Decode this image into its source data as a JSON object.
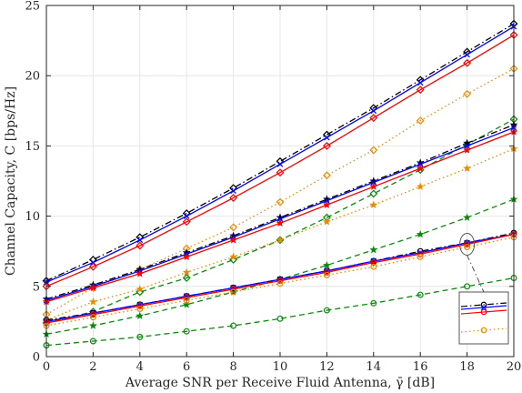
{
  "chart_data": {
    "type": "line",
    "xlabel": "Average SNR per Receive Fluid Antenna, γ̄ [dB]",
    "ylabel": "Channel Capacity, C [bps/Hz]",
    "xlim": [
      0,
      20
    ],
    "ylim": [
      0,
      25
    ],
    "xticks": [
      0,
      2,
      4,
      6,
      8,
      10,
      12,
      14,
      16,
      18,
      20
    ],
    "yticks": [
      0,
      5,
      10,
      15,
      20,
      25
    ],
    "grid": true,
    "x": [
      0,
      2,
      4,
      6,
      8,
      10,
      12,
      14,
      16,
      18,
      20
    ],
    "series": [
      {
        "group": 1,
        "color": "#000000",
        "dash": "dashdot",
        "marker": "diamond",
        "values": [
          5.4,
          6.9,
          8.5,
          10.2,
          12.0,
          13.9,
          15.8,
          17.7,
          19.7,
          21.7,
          23.7
        ]
      },
      {
        "group": 1,
        "color": "#0000ff",
        "dash": "solid",
        "marker": "x",
        "values": [
          5.3,
          6.7,
          8.3,
          10.0,
          11.8,
          13.7,
          15.6,
          17.5,
          19.5,
          21.5,
          23.5
        ]
      },
      {
        "group": 1,
        "color": "#ff0000",
        "dash": "solid",
        "marker": "diamond",
        "values": [
          5.0,
          6.4,
          7.9,
          9.6,
          11.3,
          13.1,
          15.0,
          17.0,
          19.0,
          20.9,
          22.9
        ]
      },
      {
        "group": 1,
        "color": "#e88a00",
        "dash": "dotted",
        "marker": "diamond",
        "values": [
          3.0,
          4.9,
          6.2,
          7.7,
          9.2,
          11.0,
          12.9,
          14.7,
          16.8,
          18.7,
          20.5
        ]
      },
      {
        "group": 1,
        "color": "#0a8a0a",
        "dash": "dashed",
        "marker": "diamond",
        "values": [
          2.4,
          3.2,
          4.6,
          5.6,
          6.9,
          8.3,
          9.9,
          11.6,
          13.3,
          15.1,
          16.9
        ]
      },
      {
        "group": 2,
        "color": "#000000",
        "dash": "dashdot",
        "marker": "star",
        "values": [
          4.1,
          5.1,
          6.2,
          7.4,
          8.6,
          9.9,
          11.2,
          12.5,
          13.8,
          15.2,
          16.5
        ]
      },
      {
        "group": 2,
        "color": "#0000ff",
        "dash": "solid",
        "marker": "x",
        "values": [
          4.0,
          5.0,
          6.1,
          7.3,
          8.5,
          9.8,
          11.1,
          12.4,
          13.7,
          15.0,
          16.3
        ]
      },
      {
        "group": 2,
        "color": "#ff0000",
        "dash": "solid",
        "marker": "star",
        "values": [
          3.9,
          4.9,
          5.9,
          7.1,
          8.3,
          9.5,
          10.8,
          12.1,
          13.4,
          14.7,
          16.0
        ]
      },
      {
        "group": 2,
        "color": "#e88a00",
        "dash": "dotted",
        "marker": "star",
        "values": [
          2.6,
          3.9,
          4.8,
          6.0,
          7.1,
          8.3,
          9.6,
          10.8,
          12.1,
          13.4,
          14.8
        ]
      },
      {
        "group": 2,
        "color": "#0a8a0a",
        "dash": "dashed",
        "marker": "star",
        "values": [
          1.6,
          2.2,
          2.9,
          3.7,
          4.6,
          5.5,
          6.5,
          7.6,
          8.7,
          9.9,
          11.2
        ]
      },
      {
        "group": 3,
        "color": "#000000",
        "dash": "dashdot",
        "marker": "circle",
        "values": [
          2.6,
          3.1,
          3.7,
          4.3,
          4.9,
          5.5,
          6.1,
          6.8,
          7.5,
          8.1,
          8.8
        ]
      },
      {
        "group": 3,
        "color": "#0000ff",
        "dash": "solid",
        "marker": "x",
        "values": [
          2.5,
          3.1,
          3.7,
          4.3,
          4.9,
          5.5,
          6.1,
          6.8,
          7.4,
          8.1,
          8.7
        ]
      },
      {
        "group": 3,
        "color": "#ff0000",
        "dash": "solid",
        "marker": "circle",
        "values": [
          2.4,
          3.0,
          3.6,
          4.2,
          4.8,
          5.4,
          6.0,
          6.7,
          7.3,
          8.0,
          8.7
        ]
      },
      {
        "group": 3,
        "color": "#e88a00",
        "dash": "dotted",
        "marker": "circle",
        "values": [
          2.2,
          2.8,
          3.4,
          4.0,
          4.6,
          5.2,
          5.8,
          6.4,
          7.1,
          7.8,
          8.5
        ]
      },
      {
        "group": 3,
        "color": "#0a8a0a",
        "dash": "dashed",
        "marker": "circle",
        "values": [
          0.8,
          1.1,
          1.4,
          1.8,
          2.2,
          2.7,
          3.3,
          3.8,
          4.4,
          5.0,
          5.6
        ]
      }
    ],
    "annotations": [
      {
        "type": "zoom-ellipse",
        "at_x": 18,
        "at_y": 8.0
      },
      {
        "type": "zoom-inset",
        "description": "magnified view of low-capacity curves near SNR 18 dB"
      }
    ]
  }
}
